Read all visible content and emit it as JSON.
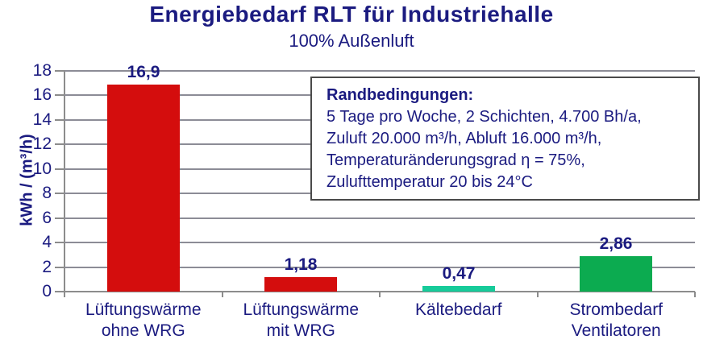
{
  "title": "Energiebedarf RLT für Industriehalle",
  "subtitle": "100% Außenluft",
  "annotation": {
    "heading": "Randbedingungen:",
    "lines": [
      "5 Tage pro Woche, 2 Schichten, 4.700 Bh/a,",
      "Zuluft 20.000 m³/h, Abluft 16.000 m³/h,",
      "Temperaturänderungsgrad η = 75%,",
      "Zulufttemperatur 20 bis 24°C"
    ]
  },
  "chart_data": {
    "type": "bar",
    "title": "Energiebedarf RLT für Industriehalle",
    "subtitle": "100% Außenluft",
    "ylabel": "kWh / (m³/h)",
    "xlabel": "",
    "ylim": [
      0,
      18
    ],
    "ytick_step": 2,
    "grid": true,
    "legend": "none",
    "categories": [
      "Lüftungswärme ohne WRG",
      "Lüftungswärme mit WRG",
      "Kältebedarf",
      "Strombedarf Ventilatoren"
    ],
    "category_lines": [
      [
        "Lüftungswärme",
        "ohne WRG"
      ],
      [
        "Lüftungswärme",
        "mit WRG"
      ],
      [
        "Kältebedarf"
      ],
      [
        "Strombedarf",
        "Ventilatoren"
      ]
    ],
    "values": [
      16.9,
      1.18,
      0.47,
      2.86
    ],
    "value_labels": [
      "16,9",
      "1,18",
      "0,47",
      "2,86"
    ],
    "bar_colors": [
      "#d40d0d",
      "#d40d0d",
      "#17cb9a",
      "#0cab50"
    ],
    "annotation": "Randbedingungen: 5 Tage pro Woche, 2 Schichten, 4.700 Bh/a, Zuluft 20.000 m³/h, Abluft 16.000 m³/h, Temperaturänderungsgrad η = 75%, Zulufttemperatur 20 bis 24°C"
  },
  "colors": {
    "text": "#1b1b80",
    "grid": "#8c8c96",
    "axis": "#8c8c8c",
    "annotation_border": "#4a4a4a",
    "background": "#ffffff"
  }
}
